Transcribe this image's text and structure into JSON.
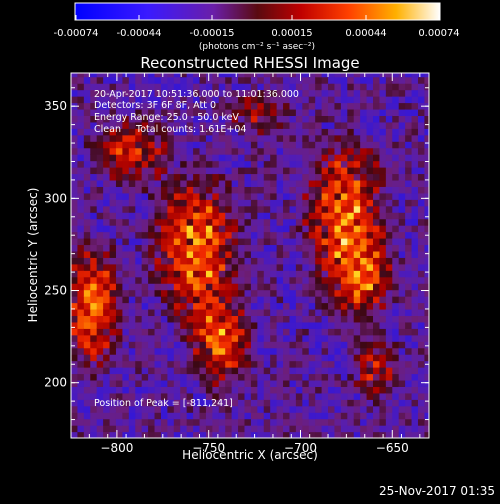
{
  "chart_data": {
    "type": "heatmap",
    "title": "Reconstructed RHESSI Image",
    "xlabel": "Heliocentric X (arcsec)",
    "ylabel": "Heliocentric Y (arcsec)",
    "xlim": [
      -825,
      -630
    ],
    "ylim": [
      170,
      368
    ],
    "xticks": [
      -800,
      -750,
      -700,
      -650
    ],
    "yticks": [
      200,
      250,
      300,
      350
    ],
    "colorbar": {
      "min": -0.00074,
      "max": 0.00074,
      "ticks": [
        "-0.00074",
        "-0.00044",
        "-0.00015",
        "0.00015",
        "0.00044",
        "0.00074"
      ],
      "unit_label": "(photons cm⁻² s⁻¹ asec⁻²)",
      "colormap": "blue-purple-red-yellow-white"
    },
    "annotations": [
      "20-Apr-2017 10:51:36.000 to 11:01:36.000",
      "Detectors: 3F 6F 8F, Att 0",
      "Energy Range: 25.0 - 50.0 keV",
      "Clean     Total counts: 1.61E+04"
    ],
    "peak_label": "Position of Peak = [-811,241]",
    "peak_position": [
      -811,
      241
    ],
    "emission_regions": [
      {
        "x": -758,
        "y": 272,
        "sx": 15,
        "sy": 24,
        "amp": 1.0
      },
      {
        "x": -745,
        "y": 220,
        "sx": 10,
        "sy": 16,
        "amp": 0.85
      },
      {
        "x": -678,
        "y": 292,
        "sx": 14,
        "sy": 24,
        "amp": 0.95
      },
      {
        "x": -668,
        "y": 255,
        "sx": 11,
        "sy": 16,
        "amp": 0.75
      },
      {
        "x": -815,
        "y": 240,
        "sx": 10,
        "sy": 22,
        "amp": 0.95
      },
      {
        "x": -795,
        "y": 325,
        "sx": 14,
        "sy": 12,
        "amp": 0.7
      },
      {
        "x": -660,
        "y": 205,
        "sx": 9,
        "sy": 11,
        "amp": 0.6
      },
      {
        "x": -725,
        "y": 345,
        "sx": 12,
        "sy": 8,
        "amp": 0.5
      }
    ],
    "footer_date": "25-Nov-2017 01:35"
  }
}
